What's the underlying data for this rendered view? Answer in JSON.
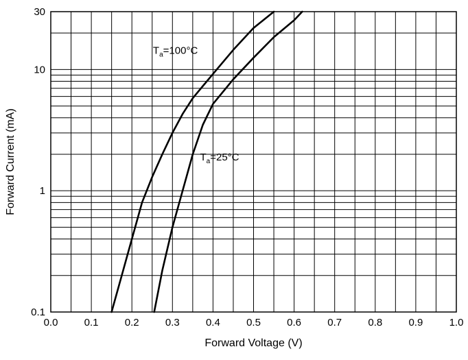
{
  "chart_data": {
    "type": "line",
    "xlabel": "Forward Voltage (V)",
    "ylabel": "Forward Current (mA)",
    "x_scale": "linear",
    "y_scale": "log",
    "xlim": [
      0.0,
      1.0
    ],
    "ylim": [
      0.1,
      30
    ],
    "x_ticks": [
      "0.0",
      "0.1",
      "0.2",
      "0.3",
      "0.4",
      "0.5",
      "0.6",
      "0.7",
      "0.8",
      "0.9",
      "1.0"
    ],
    "y_ticks": [
      {
        "value": 0.1,
        "label": "0.1"
      },
      {
        "value": 1,
        "label": "1"
      },
      {
        "value": 10,
        "label": "10"
      },
      {
        "value": 30,
        "label": "30"
      }
    ],
    "grid": true,
    "series": [
      {
        "annotation_main": "T",
        "annotation_sub": "a",
        "annotation_rest": "=100°C",
        "points": [
          [
            0.15,
            0.1
          ],
          [
            0.175,
            0.2
          ],
          [
            0.2,
            0.4
          ],
          [
            0.225,
            0.8
          ],
          [
            0.25,
            1.3
          ],
          [
            0.275,
            2.0
          ],
          [
            0.3,
            3.0
          ],
          [
            0.325,
            4.3
          ],
          [
            0.35,
            5.8
          ],
          [
            0.375,
            7.3
          ],
          [
            0.4,
            9.2
          ],
          [
            0.45,
            14.5
          ],
          [
            0.5,
            22.0
          ],
          [
            0.55,
            30.0
          ]
        ]
      },
      {
        "annotation_main": "T",
        "annotation_sub": "a",
        "annotation_rest": "=25°C",
        "points": [
          [
            0.255,
            0.1
          ],
          [
            0.275,
            0.22
          ],
          [
            0.3,
            0.5
          ],
          [
            0.325,
            1.0
          ],
          [
            0.35,
            2.0
          ],
          [
            0.375,
            3.5
          ],
          [
            0.4,
            5.2
          ],
          [
            0.45,
            8.3
          ],
          [
            0.5,
            12.5
          ],
          [
            0.55,
            18.5
          ],
          [
            0.6,
            25.5
          ],
          [
            0.62,
            30.0
          ]
        ]
      }
    ]
  }
}
